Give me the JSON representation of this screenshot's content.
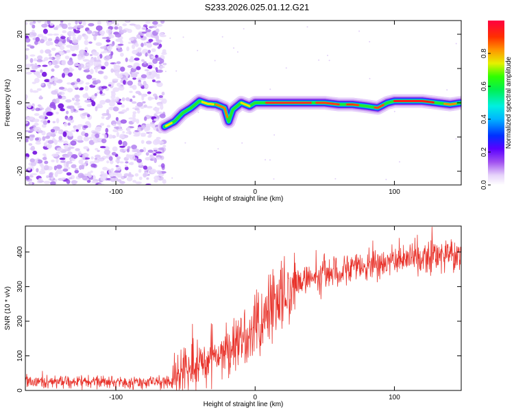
{
  "chart_data": [
    {
      "type": "heatmap",
      "title": "S233.2026.025.01.12.G21",
      "xlabel": "Height of straight line (km)",
      "ylabel": "Frequency (Hz)",
      "xlim": [
        -165,
        148
      ],
      "ylim": [
        -24,
        24
      ],
      "x_ticks": [
        -100,
        0,
        100
      ],
      "y_ticks": [
        -20,
        -10,
        0,
        10,
        20
      ],
      "noise_region_x": [
        -165,
        -65
      ],
      "frequency_track": {
        "x": [
          -65,
          -58,
          -52,
          -46,
          -40,
          -34,
          -28,
          -22,
          -19,
          -16,
          -10,
          -4,
          0,
          10,
          20,
          30,
          40,
          50,
          60,
          70,
          80,
          88,
          95,
          100,
          110,
          120,
          130,
          140,
          148
        ],
        "freq": [
          -7,
          -5.5,
          -3,
          -1.5,
          0.5,
          -0.3,
          -0.5,
          -1.5,
          -5.5,
          -2,
          0,
          -1,
          0,
          0,
          0,
          0,
          0,
          0,
          -0.5,
          -0.5,
          -1,
          -1.5,
          0,
          0.5,
          0.5,
          0.5,
          0,
          -0.5,
          0
        ]
      },
      "colorbar": {
        "label": "Normalized spectral amplitude",
        "ticks": [
          "0.0",
          "0.2",
          "0.4",
          "0.6",
          "0.8"
        ],
        "tick_values": [
          0.0,
          0.2,
          0.4,
          0.6,
          0.8
        ],
        "range": [
          0,
          1
        ]
      }
    },
    {
      "type": "line",
      "xlabel": "Height of straight line (km)",
      "ylabel": "SNR (10 * v/v)",
      "xlim": [
        -165,
        148
      ],
      "ylim": [
        0,
        475
      ],
      "x_ticks": [
        -100,
        0,
        100
      ],
      "y_ticks": [
        0,
        100,
        200,
        300,
        400
      ],
      "series": [
        {
          "name": "SNR",
          "color": "#e8322a",
          "trend_x": [
            -165,
            -120,
            -80,
            -60,
            -50,
            -40,
            -30,
            -20,
            -10,
            0,
            10,
            20,
            30,
            50,
            70,
            90,
            110,
            130,
            148
          ],
          "trend_y": [
            25,
            24,
            23,
            25,
            60,
            75,
            90,
            110,
            145,
            175,
            230,
            270,
            310,
            340,
            355,
            370,
            380,
            390,
            395
          ]
        }
      ]
    }
  ],
  "colors": {
    "snr_line": "#e8322a",
    "noise_speckle": "#8a2be2"
  }
}
